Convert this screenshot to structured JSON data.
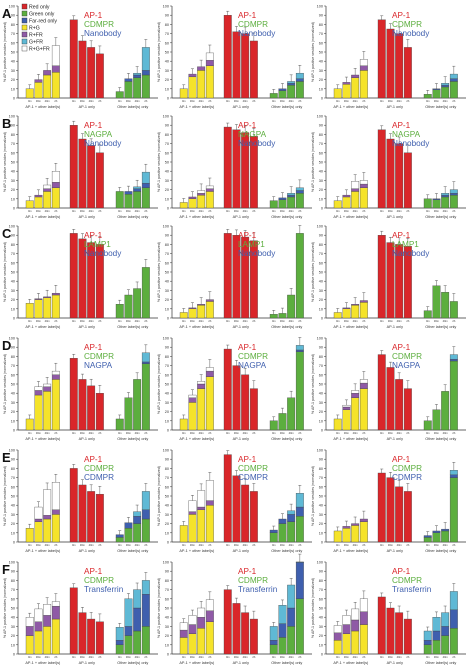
{
  "figure": {
    "panel_letters": [
      "A",
      "B",
      "C",
      "D",
      "E",
      "F"
    ],
    "legend": [
      {
        "label": "Red only",
        "color": "#d9262a"
      },
      {
        "label": "Green only",
        "color": "#5cae3e"
      },
      {
        "label": "Far-red only",
        "color": "#3f5fae"
      },
      {
        "label": "R+G",
        "color": "#f5e32a"
      },
      {
        "label": "R+FR",
        "color": "#8f5aa6"
      },
      {
        "label": "G+FR",
        "color": "#5fb9d5"
      },
      {
        "label": "R+G+FR",
        "color": "#ffffff"
      }
    ],
    "colors": {
      "red": "#d9262a",
      "green": "#5cae3e",
      "blue": "#3f5fae",
      "yellow": "#f5e32a",
      "purple": "#8f5aa6",
      "cyan": "#5fb9d5",
      "white": "#ffffff"
    }
  },
  "chart_data": [
    {
      "type": "bar",
      "panel": "A",
      "labels": [
        "AP-1",
        "CDMPR",
        "Nanobody"
      ],
      "ylabel": "% AP-1 positive vesicles (normalized)",
      "ylim": [
        0,
        100
      ],
      "yticks": [
        0,
        10,
        20,
        30,
        40,
        50,
        60,
        70,
        80,
        90,
        100
      ],
      "categories": [
        "0m",
        "30m",
        "40m",
        "2h"
      ],
      "groups": [
        "AP-1 + other label(s)",
        "AP-1 only",
        "Other label(s) only"
      ],
      "group1": [
        [
          [
            10,
            0,
            0
          ],
          [
            17,
            3,
            0
          ],
          [
            25,
            5,
            0
          ],
          [
            28,
            7,
            22
          ]
        ],
        [
          [
            10,
            0,
            0
          ],
          [
            23,
            3,
            0
          ],
          [
            30,
            4,
            0
          ],
          [
            35,
            6,
            8
          ]
        ],
        [
          [
            10,
            0,
            0
          ],
          [
            15,
            2,
            0
          ],
          [
            22,
            3,
            0
          ],
          [
            30,
            5,
            7
          ]
        ]
      ],
      "ap1_only": [
        [
          85,
          62,
          55,
          48
        ],
        [
          90,
          72,
          70,
          62
        ],
        [
          85,
          75,
          70,
          55
        ]
      ],
      "other_only": [
        [
          [
            7,
            0,
            0
          ],
          [
            18,
            3,
            0
          ],
          [
            22,
            3,
            2
          ],
          [
            25,
            5,
            25
          ]
        ],
        [
          [
            5,
            0,
            0
          ],
          [
            8,
            2,
            0
          ],
          [
            14,
            2,
            2
          ],
          [
            18,
            3,
            6
          ]
        ],
        [
          [
            4,
            0,
            0
          ],
          [
            9,
            1,
            0
          ],
          [
            12,
            2,
            2
          ],
          [
            18,
            3,
            5
          ]
        ]
      ]
    },
    {
      "type": "bar",
      "panel": "B",
      "labels": [
        "AP-1",
        "NAGPA",
        "Nanobody"
      ],
      "ylabel": "% AP-1 positive vesicles (normalized)",
      "ylim": [
        0,
        100
      ],
      "yticks": [
        0,
        10,
        20,
        30,
        40,
        50,
        60,
        70,
        80,
        90,
        100
      ],
      "categories": [
        "0m",
        "30m",
        "40m",
        "2h"
      ],
      "groups": [
        "AP-1 + other label(s)",
        "AP-1 only",
        "Other label(s) only"
      ],
      "group1": [
        [
          [
            8,
            0,
            0
          ],
          [
            12,
            2,
            0
          ],
          [
            18,
            3,
            4
          ],
          [
            22,
            6,
            12
          ]
        ],
        [
          [
            6,
            0,
            0
          ],
          [
            10,
            2,
            0
          ],
          [
            14,
            2,
            3
          ],
          [
            18,
            3,
            3
          ]
        ],
        [
          [
            8,
            0,
            0
          ],
          [
            12,
            2,
            0
          ],
          [
            18,
            3,
            8
          ],
          [
            22,
            4,
            4
          ]
        ]
      ],
      "ap1_only": [
        [
          90,
          75,
          68,
          60
        ],
        [
          88,
          85,
          82,
          78
        ],
        [
          85,
          75,
          70,
          60
        ]
      ],
      "other_only": [
        [
          [
            18,
            0,
            0
          ],
          [
            15,
            3,
            0
          ],
          [
            18,
            3,
            2
          ],
          [
            22,
            5,
            12
          ]
        ],
        [
          [
            8,
            0,
            0
          ],
          [
            9,
            2,
            0
          ],
          [
            12,
            2,
            2
          ],
          [
            16,
            3,
            3
          ]
        ],
        [
          [
            10,
            0,
            0
          ],
          [
            9,
            1,
            0
          ],
          [
            12,
            2,
            2
          ],
          [
            14,
            2,
            4
          ]
        ]
      ]
    },
    {
      "type": "bar",
      "panel": "C",
      "labels": [
        "AP-1",
        "LAMP1",
        "Nanobody"
      ],
      "ylabel": "% AP-1 positive vesicles (normalized)",
      "ylim": [
        0,
        100
      ],
      "yticks": [
        0,
        10,
        20,
        30,
        40,
        50,
        60,
        70,
        80,
        90,
        100
      ],
      "categories": [
        "0m",
        "30m",
        "40m",
        "2h"
      ],
      "groups": [
        "AP-1 + other label(s)",
        "AP-1 only",
        "Other label(s) only"
      ],
      "group1": [
        [
          [
            16,
            0,
            0
          ],
          [
            20,
            1,
            0
          ],
          [
            22,
            1,
            0
          ],
          [
            25,
            2,
            0
          ]
        ],
        [
          [
            6,
            0,
            0
          ],
          [
            10,
            1,
            0
          ],
          [
            14,
            1,
            0
          ],
          [
            18,
            2,
            0
          ]
        ],
        [
          [
            6,
            0,
            0
          ],
          [
            10,
            1,
            0
          ],
          [
            14,
            1,
            0
          ],
          [
            17,
            2,
            0
          ]
        ]
      ],
      "ap1_only": [
        [
          92,
          86,
          82,
          80
        ],
        [
          92,
          90,
          88,
          84
        ],
        [
          90,
          82,
          80,
          78
        ]
      ],
      "other_only": [
        [
          [
            15,
            0,
            0
          ],
          [
            25,
            0,
            0
          ],
          [
            32,
            0,
            0
          ],
          [
            55,
            0,
            0
          ]
        ],
        [
          [
            4,
            0,
            0
          ],
          [
            5,
            0,
            0
          ],
          [
            25,
            0,
            0
          ],
          [
            92,
            0,
            0
          ]
        ],
        [
          [
            8,
            0,
            0
          ],
          [
            35,
            0,
            0
          ],
          [
            28,
            0,
            0
          ],
          [
            18,
            0,
            0
          ]
        ]
      ]
    },
    {
      "type": "bar",
      "panel": "D",
      "labels": [
        "AP-1",
        "CDMPR",
        "NAGPA"
      ],
      "ylabel": "% AP-1 positive vesicles (normalized)",
      "ylim": [
        0,
        100
      ],
      "yticks": [
        0,
        10,
        20,
        30,
        40,
        50,
        60,
        70,
        80,
        90,
        100
      ],
      "categories": [
        "0m",
        "30m",
        "40m",
        "2h"
      ],
      "groups": [
        "AP-1 + other label(s)",
        "AP-1 only",
        "Other label(s) only"
      ],
      "group1": [
        [
          [
            12,
            0,
            0
          ],
          [
            38,
            5,
            4
          ],
          [
            42,
            5,
            3
          ],
          [
            55,
            5,
            4
          ]
        ],
        [
          [
            12,
            0,
            0
          ],
          [
            30,
            5,
            3
          ],
          [
            45,
            5,
            3
          ],
          [
            58,
            6,
            4
          ]
        ],
        [
          [
            12,
            0,
            0
          ],
          [
            22,
            3,
            2
          ],
          [
            35,
            5,
            3
          ],
          [
            45,
            6,
            4
          ]
        ]
      ],
      "ap1_only": [
        [
          78,
          55,
          48,
          40
        ],
        [
          88,
          70,
          60,
          45
        ],
        [
          82,
          68,
          55,
          45
        ]
      ],
      "other_only": [
        [
          [
            12,
            0,
            0
          ],
          [
            35,
            0,
            0
          ],
          [
            55,
            0,
            0
          ],
          [
            72,
            2,
            10
          ]
        ],
        [
          [
            10,
            0,
            0
          ],
          [
            18,
            0,
            0
          ],
          [
            35,
            0,
            0
          ],
          [
            85,
            2,
            5
          ]
        ],
        [
          [
            10,
            0,
            0
          ],
          [
            22,
            0,
            0
          ],
          [
            42,
            0,
            0
          ],
          [
            75,
            2,
            5
          ]
        ]
      ]
    },
    {
      "type": "bar",
      "panel": "E",
      "labels": [
        "AP-1",
        "CDMPR",
        "CDMPR"
      ],
      "ylabel": "% AP-1 positive vesicles (normalized)",
      "ylim": [
        0,
        100
      ],
      "yticks": [
        0,
        10,
        20,
        30,
        40,
        50,
        60,
        70,
        80,
        90,
        100
      ],
      "categories": [
        "0m",
        "30m",
        "40m",
        "2h"
      ],
      "groups": [
        "AP-1 + other label(s)",
        "AP-1 only",
        "Other label(s) only"
      ],
      "group1": [
        [
          [
            15,
            0,
            0
          ],
          [
            22,
            3,
            13
          ],
          [
            25,
            4,
            28
          ],
          [
            30,
            5,
            30
          ]
        ],
        [
          [
            18,
            0,
            0
          ],
          [
            30,
            3,
            12
          ],
          [
            35,
            3,
            18
          ],
          [
            40,
            5,
            22
          ]
        ],
        [
          [
            12,
            0,
            0
          ],
          [
            15,
            2,
            0
          ],
          [
            18,
            2,
            0
          ],
          [
            22,
            3,
            0
          ]
        ]
      ],
      "ap1_only": [
        [
          80,
          62,
          55,
          52
        ],
        [
          95,
          72,
          62,
          55
        ],
        [
          75,
          70,
          60,
          55
        ]
      ],
      "other_only": [
        [
          [
            5,
            3,
            0
          ],
          [
            15,
            6,
            0
          ],
          [
            20,
            8,
            5
          ],
          [
            25,
            10,
            20
          ]
        ],
        [
          [
            10,
            3,
            0
          ],
          [
            20,
            5,
            0
          ],
          [
            22,
            8,
            4
          ],
          [
            28,
            10,
            15
          ]
        ],
        [
          [
            5,
            2,
            0
          ],
          [
            10,
            2,
            0
          ],
          [
            12,
            2,
            0
          ],
          [
            70,
            3,
            5
          ]
        ]
      ]
    },
    {
      "type": "bar",
      "panel": "F",
      "labels": [
        "AP-1",
        "CDMPR",
        "Transferrin"
      ],
      "ylabel": "% AP-1 positive vesicles (normalized)",
      "ylim": [
        0,
        100
      ],
      "yticks": [
        0,
        10,
        20,
        30,
        40,
        50,
        60,
        70,
        80,
        90,
        100
      ],
      "categories": [
        "0m",
        "30m",
        "40m",
        "2h"
      ],
      "groups": [
        "AP-1 + other label(s)",
        "AP-1 only",
        "Other label(s) only"
      ],
      "group1": [
        [
          [
            20,
            10,
            10
          ],
          [
            25,
            10,
            14
          ],
          [
            30,
            12,
            12
          ],
          [
            38,
            14,
            5
          ]
        ],
        [
          [
            18,
            8,
            8
          ],
          [
            22,
            10,
            10
          ],
          [
            28,
            12,
            10
          ],
          [
            35,
            12,
            12
          ]
        ],
        [
          [
            15,
            8,
            8
          ],
          [
            22,
            10,
            10
          ],
          [
            25,
            12,
            12
          ],
          [
            32,
            14,
            14
          ]
        ]
      ],
      "ap1_only": [
        [
          72,
          45,
          38,
          35
        ],
        [
          70,
          55,
          45,
          38
        ],
        [
          62,
          50,
          45,
          38
        ]
      ],
      "other_only": [
        [
          [
            10,
            5,
            14
          ],
          [
            20,
            10,
            30
          ],
          [
            25,
            25,
            20
          ],
          [
            30,
            35,
            15
          ]
        ],
        [
          [
            10,
            5,
            15
          ],
          [
            18,
            15,
            20
          ],
          [
            30,
            20,
            25
          ],
          [
            60,
            40,
            12
          ]
        ],
        [
          [
            10,
            5,
            10
          ],
          [
            15,
            10,
            15
          ],
          [
            20,
            10,
            15
          ],
          [
            28,
            20,
            20
          ]
        ]
      ]
    }
  ]
}
